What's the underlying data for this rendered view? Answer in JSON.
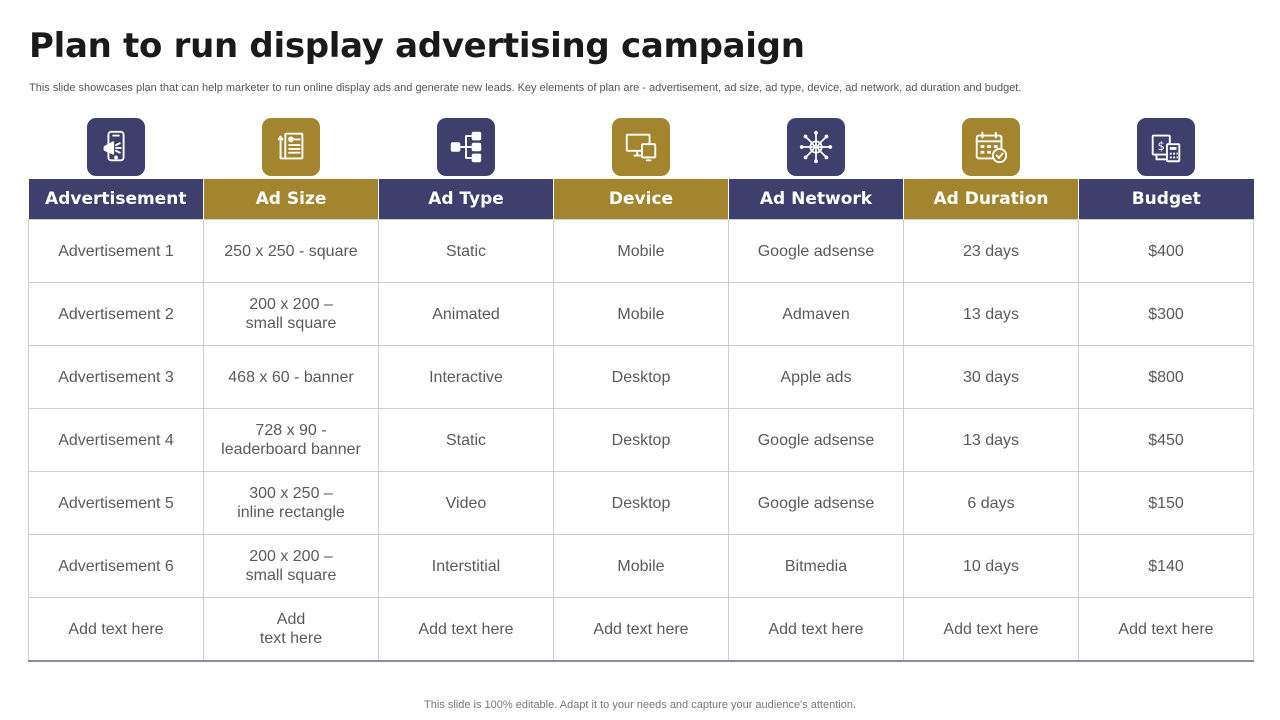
{
  "title": "Plan to run display advertising campaign",
  "subtitle": "This slide showcases plan that can help marketer to run online display ads and generate new leads. Key elements of plan are - advertisement, ad size, ad type,  device, ad network, ad duration and budget.",
  "colors": {
    "navy": "#3f3f6e",
    "gold": "#a3842f"
  },
  "icons": [
    "smartphone-megaphone-icon",
    "document-size-icon",
    "hierarchy-icon",
    "devices-icon",
    "network-icon",
    "calendar-clock-icon",
    "budget-calculator-icon"
  ],
  "headers": [
    "Advertisement",
    "Ad Size",
    "Ad Type",
    "Device",
    "Ad Network",
    "Ad Duration",
    "Budget"
  ],
  "rows": [
    [
      "Advertisement 1",
      "250 x 250 - square",
      "Static",
      "Mobile",
      "Google adsense",
      "23 days",
      "$400"
    ],
    [
      "Advertisement 2",
      "200 x 200 –\nsmall square",
      "Animated",
      "Mobile",
      "Admaven",
      "13 days",
      "$300"
    ],
    [
      "Advertisement 3",
      "468 x 60 - banner",
      "Interactive",
      "Desktop",
      "Apple ads",
      "30 days",
      "$800"
    ],
    [
      "Advertisement 4",
      "728 x 90 -\nleaderboard banner",
      "Static",
      "Desktop",
      "Google adsense",
      "13 days",
      "$450"
    ],
    [
      "Advertisement 5",
      "300 x 250 –\ninline rectangle",
      "Video",
      "Desktop",
      "Google adsense",
      "6 days",
      "$150"
    ],
    [
      "Advertisement 6",
      "200 x 200 –\nsmall square",
      "Interstitial",
      "Mobile",
      "Bitmedia",
      "10 days",
      "$140"
    ],
    [
      "Add text here",
      "Add\ntext here",
      "Add text here",
      "Add text here",
      "Add text here",
      "Add text here",
      "Add text here"
    ]
  ],
  "footer": "This slide is 100% editable. Adapt it to your needs and capture your audience's attention."
}
